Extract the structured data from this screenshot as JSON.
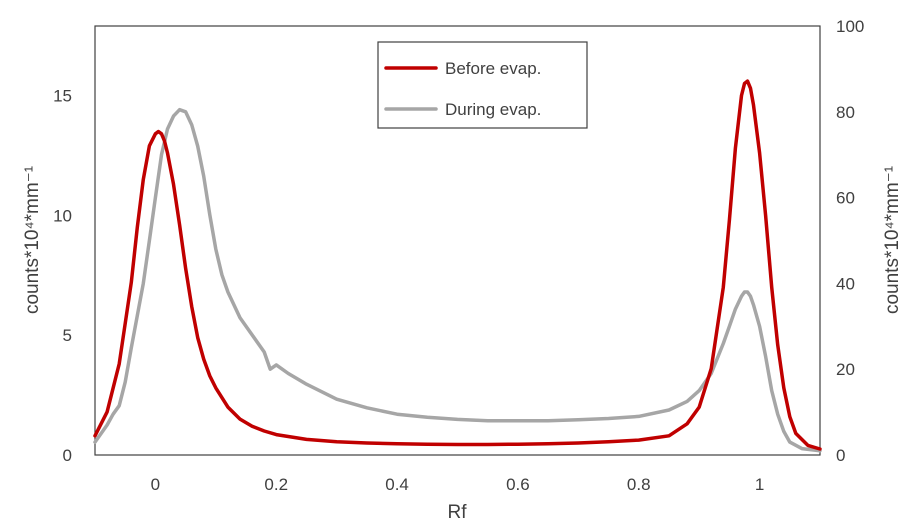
{
  "chart_data": {
    "type": "line",
    "xlabel": "Rf",
    "ylabel": "counts*10⁴*mm⁻¹",
    "y2label": "counts*10⁴*mm⁻¹",
    "xlim": [
      -0.1,
      1.1
    ],
    "ylim": [
      0,
      17.9
    ],
    "y2lim": [
      0,
      100
    ],
    "xticks": [
      "0",
      "0.2",
      "0.4",
      "0.6",
      "0.8",
      "1"
    ],
    "yticks": [
      "0",
      "5",
      "10",
      "15"
    ],
    "y2ticks": [
      "0",
      "20",
      "40",
      "60",
      "80",
      "100"
    ],
    "grid": false,
    "legend_position": "top-center",
    "series": [
      {
        "name": "Before evap.",
        "axis": "left",
        "color": "#c00000",
        "x": [
          -0.1,
          -0.08,
          -0.06,
          -0.04,
          -0.03,
          -0.02,
          -0.01,
          0.0,
          0.005,
          0.01,
          0.015,
          0.02,
          0.03,
          0.04,
          0.05,
          0.06,
          0.07,
          0.08,
          0.09,
          0.1,
          0.12,
          0.14,
          0.16,
          0.18,
          0.2,
          0.25,
          0.3,
          0.35,
          0.4,
          0.45,
          0.5,
          0.55,
          0.6,
          0.65,
          0.7,
          0.75,
          0.8,
          0.85,
          0.88,
          0.9,
          0.92,
          0.94,
          0.95,
          0.96,
          0.97,
          0.975,
          0.98,
          0.985,
          0.99,
          1.0,
          1.01,
          1.02,
          1.03,
          1.04,
          1.05,
          1.06,
          1.08,
          1.1
        ],
        "y": [
          0.8,
          1.8,
          3.8,
          7.2,
          9.5,
          11.5,
          12.9,
          13.4,
          13.5,
          13.4,
          13.1,
          12.6,
          11.3,
          9.6,
          7.8,
          6.2,
          4.9,
          4.0,
          3.3,
          2.8,
          2.0,
          1.5,
          1.2,
          1.0,
          0.85,
          0.65,
          0.55,
          0.5,
          0.47,
          0.45,
          0.44,
          0.44,
          0.45,
          0.47,
          0.5,
          0.55,
          0.62,
          0.8,
          1.3,
          2.0,
          3.6,
          7.0,
          9.8,
          12.8,
          15.0,
          15.5,
          15.6,
          15.3,
          14.6,
          12.6,
          10.0,
          7.0,
          4.6,
          2.8,
          1.6,
          0.9,
          0.4,
          0.25
        ]
      },
      {
        "name": "During evap.",
        "axis": "right",
        "color": "#a6a6a6",
        "x": [
          -0.1,
          -0.08,
          -0.07,
          -0.06,
          -0.05,
          -0.04,
          -0.02,
          -0.01,
          0.0,
          0.01,
          0.02,
          0.03,
          0.04,
          0.05,
          0.06,
          0.07,
          0.08,
          0.09,
          0.1,
          0.11,
          0.12,
          0.14,
          0.16,
          0.18,
          0.19,
          0.2,
          0.22,
          0.25,
          0.3,
          0.35,
          0.4,
          0.45,
          0.5,
          0.55,
          0.6,
          0.65,
          0.7,
          0.75,
          0.8,
          0.85,
          0.88,
          0.9,
          0.92,
          0.94,
          0.95,
          0.96,
          0.97,
          0.975,
          0.98,
          0.985,
          0.99,
          1.0,
          1.01,
          1.02,
          1.03,
          1.04,
          1.05,
          1.07,
          1.1
        ],
        "y": [
          3.0,
          7.0,
          9.5,
          11.5,
          17.0,
          25.0,
          40.0,
          50.0,
          60.0,
          70.0,
          76.0,
          79.0,
          80.5,
          80.0,
          77.0,
          72.0,
          65.0,
          56.0,
          48.0,
          42.0,
          38.0,
          32.0,
          28.0,
          24.0,
          20.0,
          21.0,
          19.0,
          16.5,
          13.0,
          11.0,
          9.5,
          8.8,
          8.3,
          8.0,
          8.0,
          8.0,
          8.2,
          8.5,
          9.0,
          10.5,
          12.5,
          15.0,
          19.0,
          26.0,
          30.0,
          34.0,
          37.0,
          38.0,
          38.0,
          37.0,
          35.0,
          30.0,
          23.0,
          15.0,
          9.5,
          5.5,
          3.0,
          1.5,
          1.0
        ]
      }
    ]
  }
}
